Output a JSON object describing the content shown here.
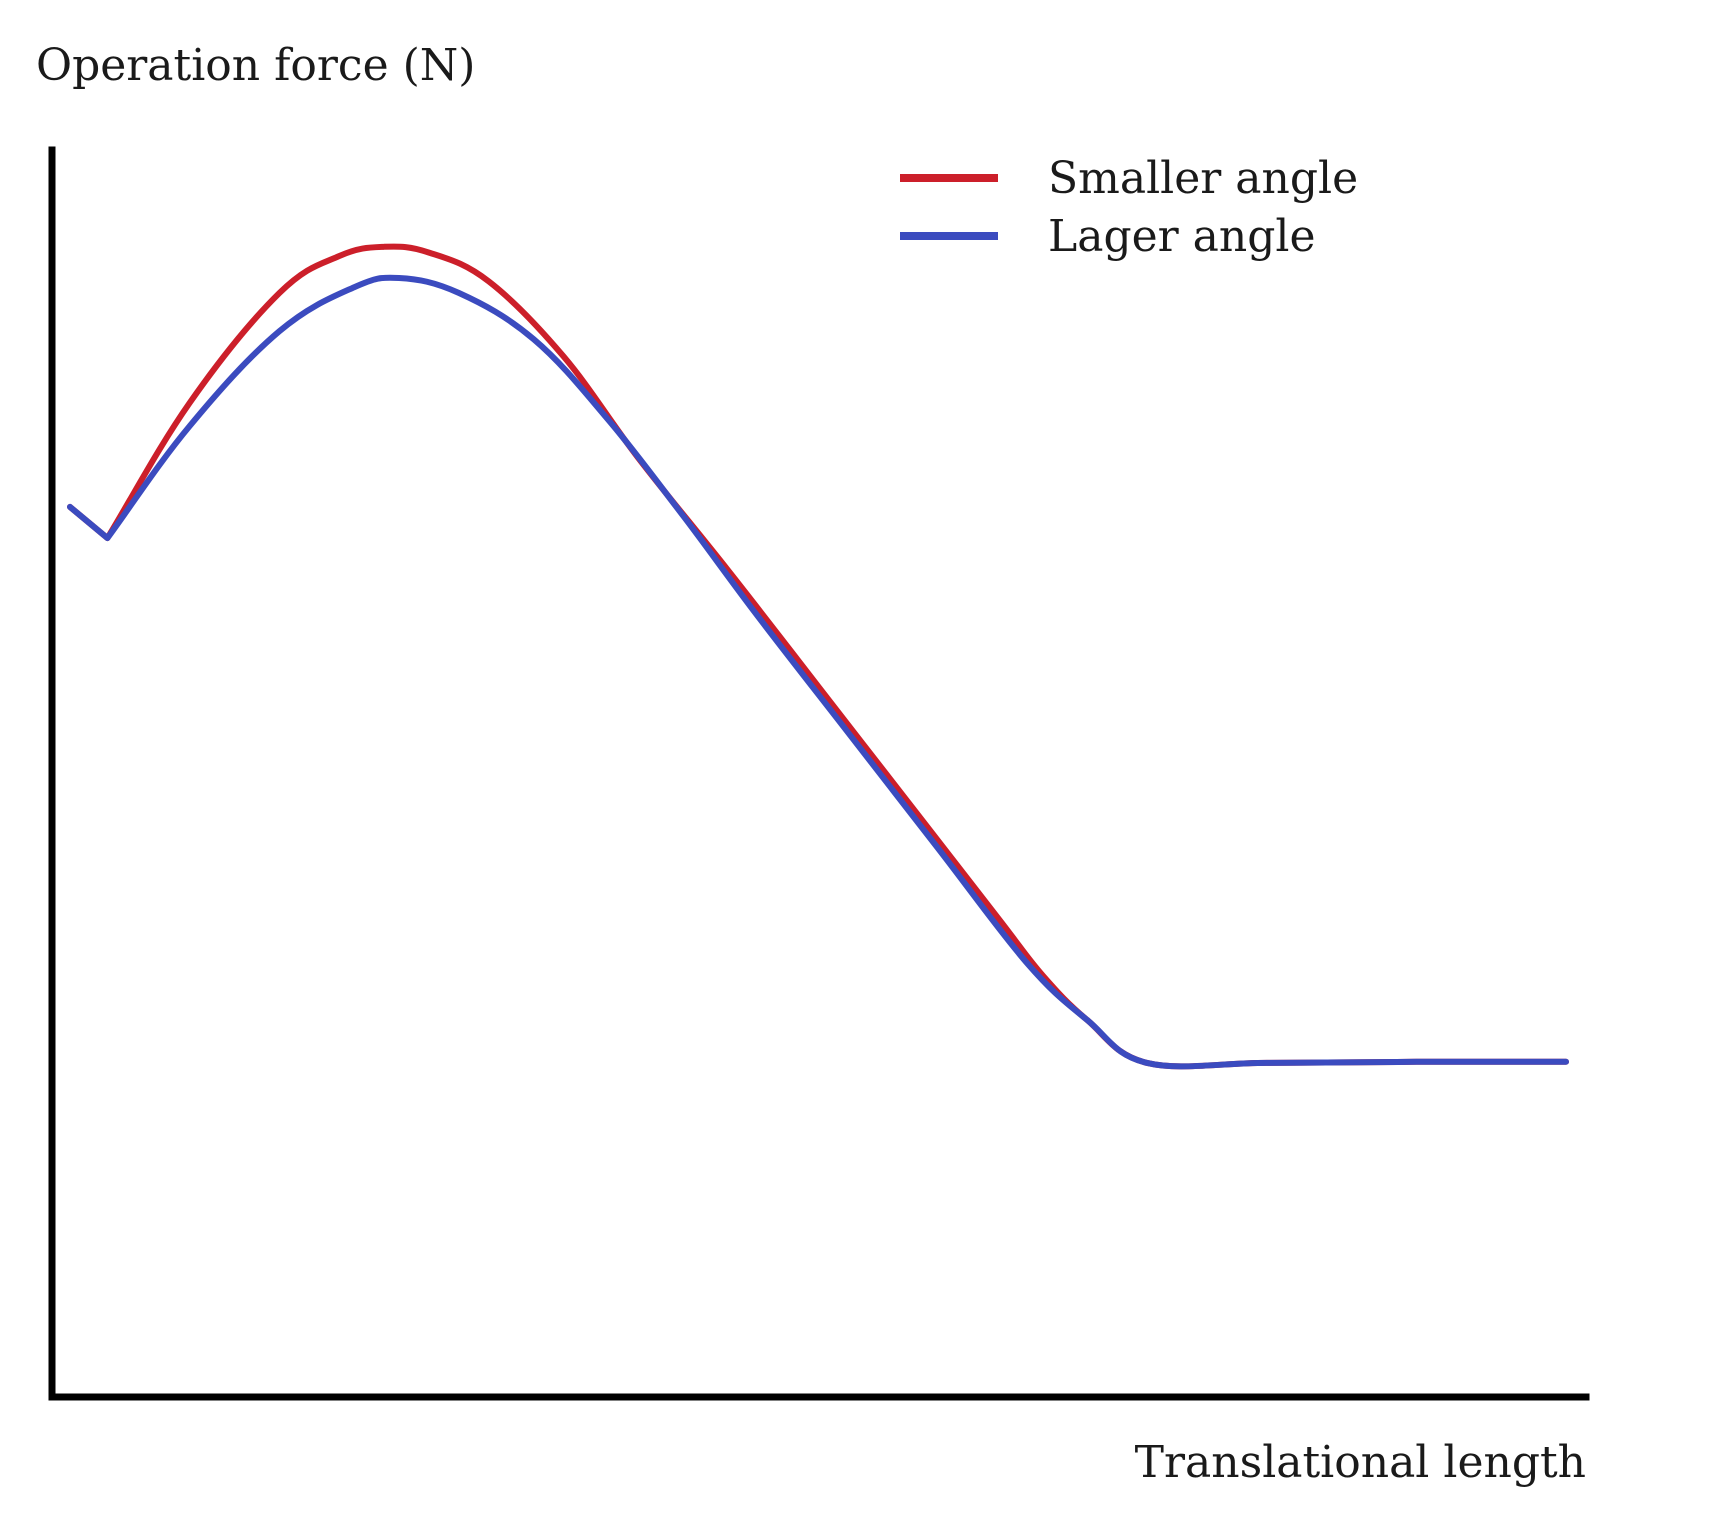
{
  "chart_data": {
    "type": "line",
    "title": "",
    "xlabel": "Translational length",
    "ylabel": "Operation force (N)",
    "xlim": [
      0,
      100
    ],
    "ylim": [
      0,
      100
    ],
    "grid": false,
    "legend_position": "top-right",
    "series": [
      {
        "name": "Smaller angle",
        "color": "#cc1f2a",
        "x": [
          0,
          2.5,
          8,
          14,
          18,
          21,
          24,
          28,
          33,
          38,
          44,
          50,
          56,
          62,
          65,
          68,
          72,
          80,
          90,
          100
        ],
        "y": [
          77,
          74.3,
          86,
          95.5,
          98.7,
          99.5,
          99,
          96.5,
          90,
          81.2,
          71.5,
          61.5,
          51.5,
          41.5,
          36.5,
          32.6,
          28.9,
          28.9,
          29,
          29
        ]
      },
      {
        "name": "Lager angle",
        "color": "#3b4bbf",
        "x": [
          0,
          2.5,
          8,
          14,
          19,
          22,
          26,
          31,
          36,
          41,
          46,
          52,
          58,
          64,
          68,
          72,
          80,
          90,
          100
        ],
        "y": [
          77,
          74.3,
          84,
          92.2,
          96,
          96.8,
          95.5,
          91.5,
          84.5,
          76.2,
          67.5,
          57.5,
          47.5,
          37.5,
          32.6,
          28.9,
          28.9,
          29,
          29
        ]
      }
    ]
  }
}
